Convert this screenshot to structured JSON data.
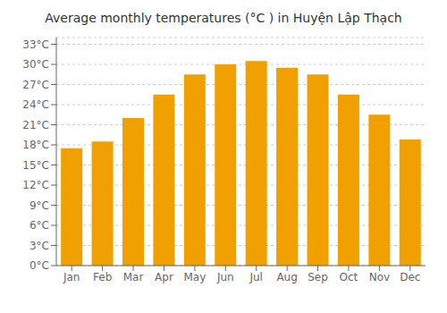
{
  "chart_data": {
    "type": "bar",
    "title": "Average monthly temperatures (°C ) in Huyện Lập Thạch",
    "categories": [
      "Jan",
      "Feb",
      "Mar",
      "Apr",
      "May",
      "Jun",
      "Jul",
      "Aug",
      "Sep",
      "Oct",
      "Nov",
      "Dec"
    ],
    "values": [
      17.5,
      18.5,
      22.0,
      25.5,
      28.5,
      30.0,
      30.5,
      29.5,
      28.5,
      25.5,
      22.5,
      18.8
    ],
    "color": "#F0A000",
    "ylim": [
      0,
      34
    ],
    "yticks": [
      {
        "value": 0,
        "label": "0°C"
      },
      {
        "value": 3,
        "label": "3°C"
      },
      {
        "value": 6,
        "label": "6°C"
      },
      {
        "value": 9,
        "label": "9°C"
      },
      {
        "value": 12,
        "label": "12°C"
      },
      {
        "value": 15,
        "label": "15°C"
      },
      {
        "value": 18,
        "label": "18°C"
      },
      {
        "value": 21,
        "label": "21°C"
      },
      {
        "value": 24,
        "label": "24°C"
      },
      {
        "value": 27,
        "label": "27°C"
      },
      {
        "value": 30,
        "label": "30°C"
      },
      {
        "value": 33,
        "label": "33°C"
      }
    ],
    "grid": true
  }
}
